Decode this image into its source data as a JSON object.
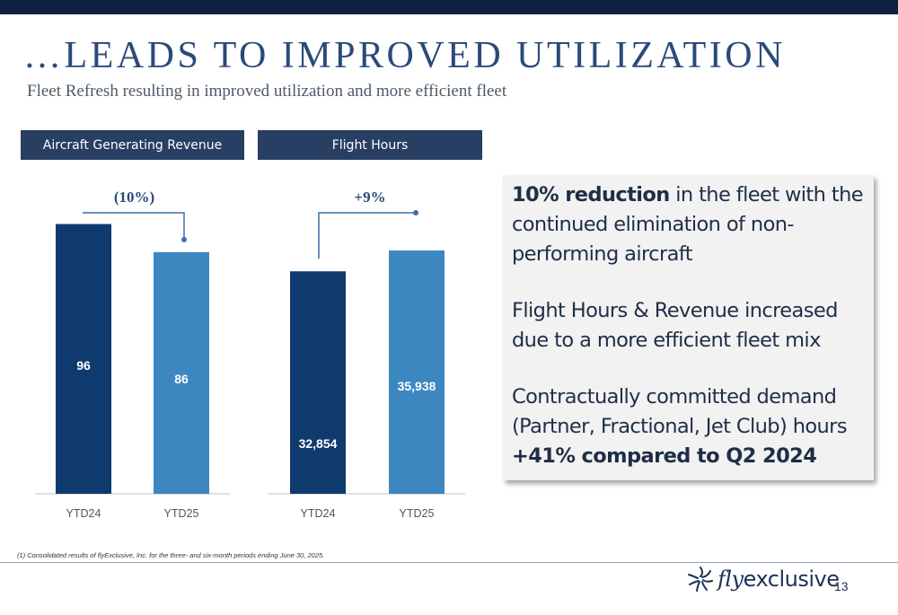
{
  "slide": {
    "title": "…LEADS TO IMPROVED UTILIZATION",
    "subtitle": "Fleet Refresh resulting in improved utilization and more efficient fleet",
    "footnote": "(1) Consolidated results of flyExclusive, Inc. for the three- and six-month periods ending June 30, 2025.",
    "page_number": "13",
    "logo_fly": "fly",
    "logo_rest": "exclusive"
  },
  "callout": {
    "p1_bold": "10% reduction",
    "p1_rest": " in the fleet with the continued elimination of non-performing aircraft",
    "p2": "Flight Hours & Revenue increased due to a more efficient fleet mix",
    "p3": "Contractually committed demand (Partner, Fractional, Jet Club) hours",
    "p3_bold": "+41% compared to Q2 2024"
  },
  "colors": {
    "dark_bar": "#0f3a6e",
    "light_bar": "#3d87c1",
    "header_bg": "#283f63",
    "connector": "#3d6fa8"
  },
  "chart_data": [
    {
      "type": "bar",
      "title": "Aircraft Generating Revenue",
      "categories": [
        "YTD24",
        "YTD25"
      ],
      "values": [
        96,
        86
      ],
      "value_labels": [
        "96",
        "86"
      ],
      "change_label": "(10%)",
      "ylim": [
        0,
        100
      ]
    },
    {
      "type": "bar",
      "title": "Flight Hours",
      "categories": [
        "YTD24",
        "YTD25"
      ],
      "values": [
        32854,
        35938
      ],
      "value_labels": [
        "32,854",
        "35,938"
      ],
      "change_label": "+9%",
      "ylim": [
        0,
        41500
      ]
    }
  ]
}
